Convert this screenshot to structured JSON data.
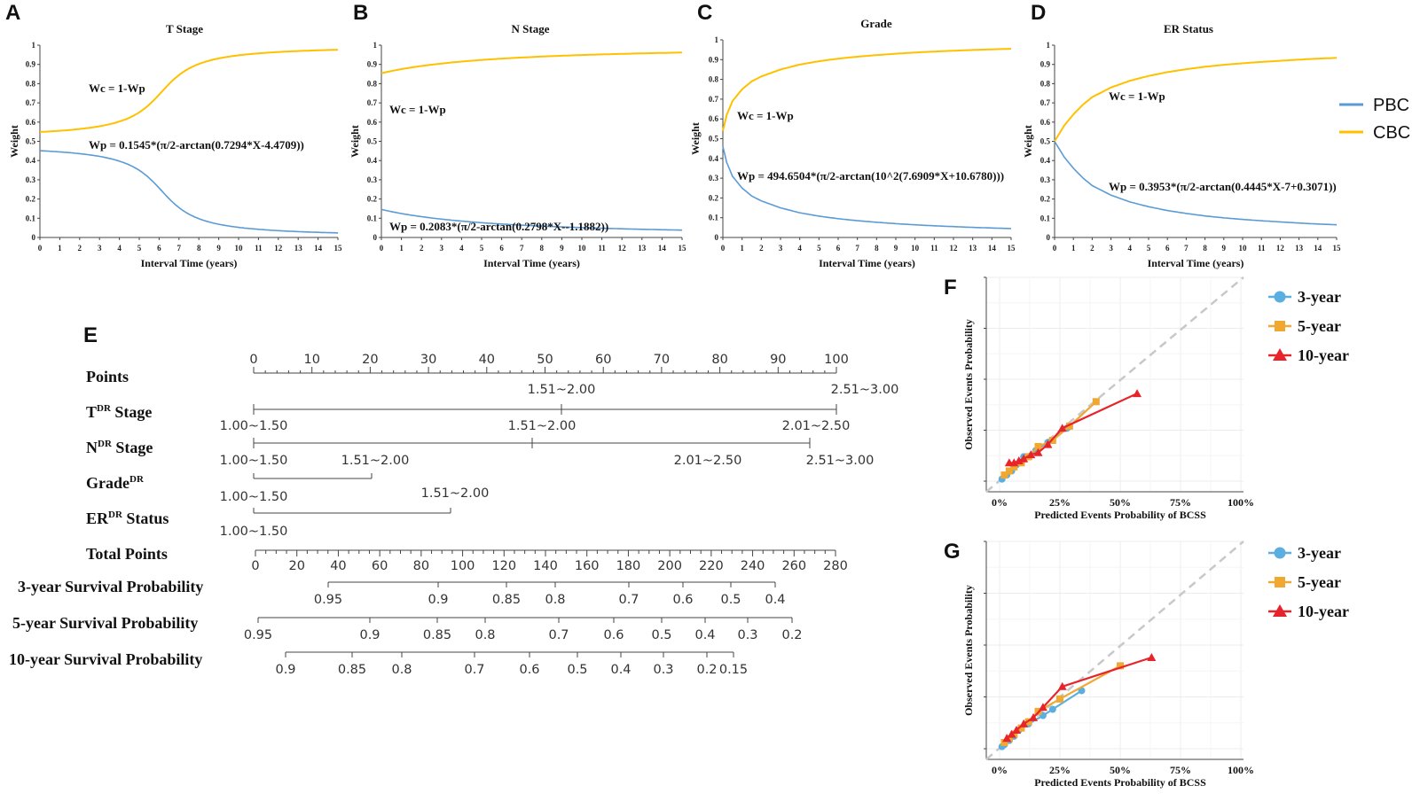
{
  "colors": {
    "pbc": "#5b9bd5",
    "cbc": "#ffc000",
    "y3": "#5aaee0",
    "y5": "#f0a830",
    "y10": "#e8242b",
    "diag": "#c8c8c8"
  },
  "legend_top": {
    "pbc": "PBC",
    "cbc": "CBC"
  },
  "weight_panels": [
    {
      "letter": "A",
      "title": "T Stage",
      "ylabel": "Weight",
      "xlabel": "Interval Time (years)",
      "wc_label": "Wc = 1-Wp",
      "wp_label": "Wp = 0.1545*(π/2-arctan(0.7294*X-4.4709))"
    },
    {
      "letter": "B",
      "title": "N Stage",
      "ylabel": "Weight",
      "xlabel": "Interval Time (years)",
      "wc_label": "Wc = 1-Wp",
      "wp_label": "Wp = 0.2083*(π/2-arctan(0.2798*X--1.1882))"
    },
    {
      "letter": "C",
      "title": "Grade",
      "ylabel": "Weight",
      "xlabel": "Interval Time (years)",
      "wc_label": "Wc = 1-Wp",
      "wp_label": "Wp = 494.6504*(π/2-arctan(10^2(7.6909*X+10.6780)))"
    },
    {
      "letter": "D",
      "title": "ER Status",
      "ylabel": "Weight",
      "xlabel": "Interval Time (years)",
      "wc_label": "Wc = 1-Wp",
      "wp_label": "Wp = 0.3953*(π/2-arctan(0.4445*X-7+0.3071))"
    }
  ],
  "nomogram": {
    "letter": "E",
    "rows": {
      "points": "Points",
      "t_stage": {
        "pre": "T",
        "sup": "DR",
        "post": " Stage"
      },
      "n_stage": {
        "pre": "N",
        "sup": "DR",
        "post": " Stage"
      },
      "grade": {
        "pre": "Grade",
        "sup": "DR",
        "post": ""
      },
      "er": {
        "pre": "ER",
        "sup": "DR",
        "post": " Status"
      },
      "total": "Total Points",
      "s3": "3-year Survival Probability",
      "s5": "5-year Survival Probability",
      "s10": "10-year Survival Probability"
    },
    "points_ticks": [
      "0",
      "10",
      "20",
      "30",
      "40",
      "50",
      "60",
      "70",
      "80",
      "90",
      "100"
    ],
    "t_labels": [
      "1.51~2.00",
      "2.51~3.00",
      "1.00~1.50"
    ],
    "n_labels": [
      "1.51~2.00",
      "2.01~2.50",
      "1.00~1.50"
    ],
    "grade_labels": [
      "1.51~2.00",
      "2.01~2.50",
      "2.51~3.00",
      "1.00~1.50"
    ],
    "er_labels": [
      "1.51~2.00",
      "1.00~1.50"
    ],
    "total_ticks": [
      "0",
      "20",
      "40",
      "60",
      "80",
      "100",
      "120",
      "140",
      "160",
      "180",
      "200",
      "220",
      "240",
      "260",
      "280"
    ],
    "s3_labels": [
      "0.95",
      "0.9",
      "0.85",
      "0.8",
      "0.7",
      "0.6",
      "0.5",
      "0.4"
    ],
    "s5_labels": [
      "0.95",
      "0.9",
      "0.85",
      "0.8",
      "0.7",
      "0.6",
      "0.5",
      "0.4",
      "0.3",
      "0.2"
    ],
    "s10_labels": [
      "0.9",
      "0.85",
      "0.8",
      "0.7",
      "0.6",
      "0.5",
      "0.4",
      "0.3",
      "0.2",
      "0.15"
    ]
  },
  "chart_data": [
    {
      "type": "line",
      "panel": "A",
      "title": "T Stage",
      "xlabel": "Interval Time (years)",
      "ylabel": "Weight",
      "xlim": [
        0,
        15
      ],
      "ylim": [
        0,
        1
      ],
      "x_ticks": [
        "0",
        "1",
        "2",
        "3",
        "4",
        "5",
        "6",
        "7",
        "8",
        "9",
        "10",
        "11",
        "12",
        "13",
        "14",
        "15"
      ],
      "y_ticks": [
        "0",
        "0.1",
        "0.2",
        "0.3",
        "0.4",
        "0.5",
        "0.6",
        "0.7",
        "0.8",
        "0.9",
        "1"
      ],
      "series": [
        {
          "name": "PBC",
          "formula": {
            "kind": "atan",
            "a": 0.1545,
            "b": 0.7294,
            "c": -4.4709
          }
        },
        {
          "name": "CBC",
          "formula": {
            "kind": "complement"
          }
        }
      ]
    },
    {
      "type": "line",
      "panel": "B",
      "title": "N Stage",
      "xlabel": "Interval Time (years)",
      "ylabel": "Weight",
      "xlim": [
        0,
        15
      ],
      "ylim": [
        0,
        1
      ],
      "x_ticks": [
        "0",
        "1",
        "2",
        "3",
        "4",
        "5",
        "6",
        "7",
        "8",
        "9",
        "10",
        "11",
        "12",
        "13",
        "14",
        "15"
      ],
      "y_ticks": [
        "0",
        "0.1",
        "0.2",
        "0.3",
        "0.4",
        "0.5",
        "0.6",
        "0.7",
        "0.8",
        "0.9",
        "1"
      ],
      "series": [
        {
          "name": "PBC",
          "formula": {
            "kind": "atan",
            "a": 0.2083,
            "b": 0.2798,
            "c": 1.1882
          }
        },
        {
          "name": "CBC",
          "formula": {
            "kind": "complement"
          }
        }
      ]
    },
    {
      "type": "line",
      "panel": "C",
      "title": "Grade",
      "xlabel": "Interval Time (years)",
      "ylabel": "Weight",
      "xlim": [
        0,
        15
      ],
      "ylim": [
        0,
        1
      ],
      "x_ticks": [
        "0",
        "1",
        "2",
        "3",
        "4",
        "5",
        "6",
        "7",
        "8",
        "9",
        "10",
        "11",
        "12",
        "13",
        "14",
        "15"
      ],
      "y_ticks": [
        "0",
        "0.1",
        "0.2",
        "0.3",
        "0.4",
        "0.5",
        "0.6",
        "0.7",
        "0.8",
        "0.9",
        "1"
      ],
      "series": [
        {
          "name": "PBC",
          "values_x": [
            0,
            0.2,
            0.5,
            1,
            1.5,
            2,
            3,
            4,
            5,
            6,
            7,
            8,
            9,
            10,
            11,
            12,
            13,
            14,
            15
          ],
          "values_y": [
            0.46,
            0.38,
            0.31,
            0.25,
            0.21,
            0.185,
            0.15,
            0.125,
            0.108,
            0.095,
            0.085,
            0.077,
            0.07,
            0.064,
            0.059,
            0.055,
            0.051,
            0.048,
            0.045
          ]
        },
        {
          "name": "CBC",
          "formula": {
            "kind": "complement"
          }
        }
      ]
    },
    {
      "type": "line",
      "panel": "D",
      "title": "ER Status",
      "xlabel": "Interval Time (years)",
      "ylabel": "Weight",
      "xlim": [
        0,
        15
      ],
      "ylim": [
        0,
        1
      ],
      "x_ticks": [
        "0",
        "1",
        "2",
        "3",
        "4",
        "5",
        "6",
        "7",
        "8",
        "9",
        "10",
        "11",
        "12",
        "13",
        "14",
        "15"
      ],
      "y_ticks": [
        "0",
        "0.1",
        "0.2",
        "0.3",
        "0.4",
        "0.5",
        "0.6",
        "0.7",
        "0.8",
        "0.9",
        "1"
      ],
      "series": [
        {
          "name": "PBC",
          "values_x": [
            0,
            0.5,
            1,
            1.5,
            2,
            3,
            4,
            5,
            6,
            7,
            8,
            9,
            10,
            11,
            12,
            13,
            14,
            15
          ],
          "values_y": [
            0.5,
            0.42,
            0.36,
            0.31,
            0.27,
            0.22,
            0.185,
            0.16,
            0.14,
            0.125,
            0.112,
            0.102,
            0.094,
            0.087,
            0.081,
            0.075,
            0.07,
            0.066
          ]
        },
        {
          "name": "CBC",
          "formula": {
            "kind": "complement"
          }
        }
      ]
    },
    {
      "type": "line",
      "panel": "F",
      "xlabel": "Predicted Events Probability of BCSS",
      "ylabel": "Observed Events Probability",
      "xlim": [
        0,
        1
      ],
      "ylim": [
        0,
        1
      ],
      "x_ticks": [
        "0%",
        "25%",
        "50%",
        "75%",
        "100%"
      ],
      "series": [
        {
          "name": "3-year",
          "x": [
            0.01,
            0.03,
            0.05,
            0.07,
            0.1,
            0.15,
            0.2,
            0.28
          ],
          "y": [
            0.01,
            0.03,
            0.05,
            0.08,
            0.12,
            0.15,
            0.19,
            0.26
          ]
        },
        {
          "name": "5-year",
          "x": [
            0.02,
            0.04,
            0.06,
            0.09,
            0.12,
            0.16,
            0.22,
            0.29,
            0.4
          ],
          "y": [
            0.03,
            0.05,
            0.07,
            0.09,
            0.12,
            0.17,
            0.2,
            0.27,
            0.39
          ]
        },
        {
          "name": "10-year",
          "x": [
            0.04,
            0.06,
            0.08,
            0.1,
            0.13,
            0.16,
            0.2,
            0.26,
            0.57
          ],
          "y": [
            0.09,
            0.09,
            0.1,
            0.11,
            0.13,
            0.14,
            0.18,
            0.26,
            0.43
          ]
        }
      ]
    },
    {
      "type": "line",
      "panel": "G",
      "xlabel": "Predicted Events Probability of BCSS",
      "ylabel": "Observed Events Probability",
      "xlim": [
        0,
        1
      ],
      "ylim": [
        0,
        1
      ],
      "x_ticks": [
        "0%",
        "25%",
        "50%",
        "75%",
        "100%"
      ],
      "series": [
        {
          "name": "3-year",
          "x": [
            0.01,
            0.02,
            0.04,
            0.06,
            0.08,
            0.12,
            0.18,
            0.22,
            0.34
          ],
          "y": [
            0.01,
            0.02,
            0.04,
            0.06,
            0.09,
            0.12,
            0.16,
            0.19,
            0.28
          ]
        },
        {
          "name": "5-year",
          "x": [
            0.02,
            0.04,
            0.06,
            0.09,
            0.12,
            0.16,
            0.25,
            0.5
          ],
          "y": [
            0.03,
            0.05,
            0.07,
            0.1,
            0.13,
            0.18,
            0.24,
            0.4
          ]
        },
        {
          "name": "10-year",
          "x": [
            0.03,
            0.05,
            0.07,
            0.1,
            0.14,
            0.18,
            0.26,
            0.63
          ],
          "y": [
            0.05,
            0.07,
            0.09,
            0.12,
            0.15,
            0.2,
            0.3,
            0.44
          ]
        }
      ]
    }
  ],
  "calibration_legend": [
    "3-year",
    "5-year",
    "10-year"
  ],
  "calibration_letters": [
    "F",
    "G"
  ]
}
